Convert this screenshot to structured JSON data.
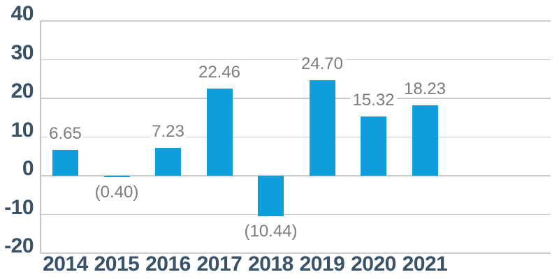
{
  "chart_data": {
    "type": "bar",
    "categories": [
      "2014",
      "2015",
      "2016",
      "2017",
      "2018",
      "2019",
      "2020",
      "2021"
    ],
    "values": [
      6.65,
      -0.4,
      7.23,
      22.46,
      -10.44,
      24.7,
      15.32,
      18.23
    ],
    "data_labels": [
      "6.65",
      "(0.40)",
      "7.23",
      "22.46",
      "(10.44)",
      "24.70",
      "15.32",
      "18.23"
    ],
    "title": "",
    "xlabel": "",
    "ylabel": "",
    "ylim": [
      -20,
      40
    ],
    "yticks": [
      40,
      30,
      20,
      10,
      0,
      -10,
      -20
    ],
    "grid": true,
    "legend": false,
    "bar_color": "#0d9edb",
    "axis_label_color": "#3a5268",
    "data_label_color": "#7c7c7c",
    "gridline_color": "#cccccc"
  }
}
